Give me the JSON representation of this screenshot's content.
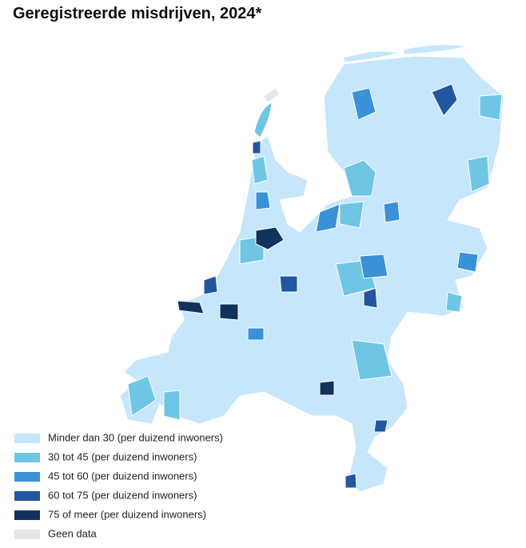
{
  "title": "Geregistreerde misdrijven, 2024*",
  "legend": {
    "items": [
      {
        "label": "Minder dan 30 (per duizend inwoners)",
        "color": "#c6e6fb"
      },
      {
        "label": "30 tot 45 (per duizend inwoners)",
        "color": "#6fc6e4"
      },
      {
        "label": "45 tot 60 (per duizend inwoners)",
        "color": "#3a91d6"
      },
      {
        "label": "60 tot 75 (per duizend inwoners)",
        "color": "#22569f"
      },
      {
        "label": "75 of meer (per duizend inwoners)",
        "color": "#12325e"
      },
      {
        "label": "Geen data",
        "color": "#e6e6e6"
      }
    ]
  }
}
